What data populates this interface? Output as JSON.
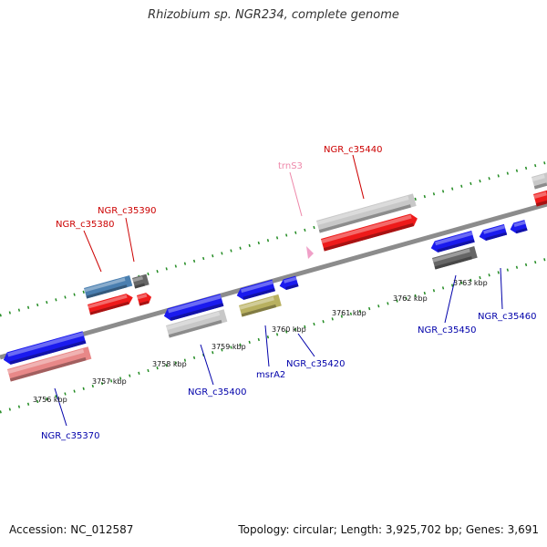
{
  "title": "Rhizobium sp. NGR234, complete genome",
  "accession": "Accession: NC_012587",
  "topology": "Topology: circular; Length: 3,925,702 bp; Genes: 3,691",
  "colors": {
    "backbone": "#8c8c8c",
    "tick": "#228b22",
    "forward_label": "#cc0000",
    "reverse_label": "#0000aa",
    "trna_label": "#ee88aa",
    "cds_blue": "#1a1aee",
    "cds_red": "#ee1a1a",
    "gene_gray": "#c8c8c8",
    "pseudo_gray": "#666666",
    "gene_steelblue": "#4a7fb0",
    "rna_pink": "#e88888",
    "gene_olive": "#b8b060",
    "trna_pink": "#f0a0c8"
  },
  "scale": {
    "unit": "kbp",
    "ticks": [
      "3756 kbp",
      "3757 kbp",
      "3758 kbp",
      "3759 kbp",
      "3760 kbp",
      "3761 kbp",
      "3762 kbp",
      "3763 kbp"
    ]
  },
  "genes": {
    "forward": [
      "NGR_c35380",
      "NGR_c35390",
      "trnS3",
      "NGR_c35440"
    ],
    "reverse": [
      "NGR_c35370",
      "NGR_c35400",
      "msrA2",
      "NGR_c35420",
      "NGR_c35450",
      "NGR_c35460"
    ]
  }
}
